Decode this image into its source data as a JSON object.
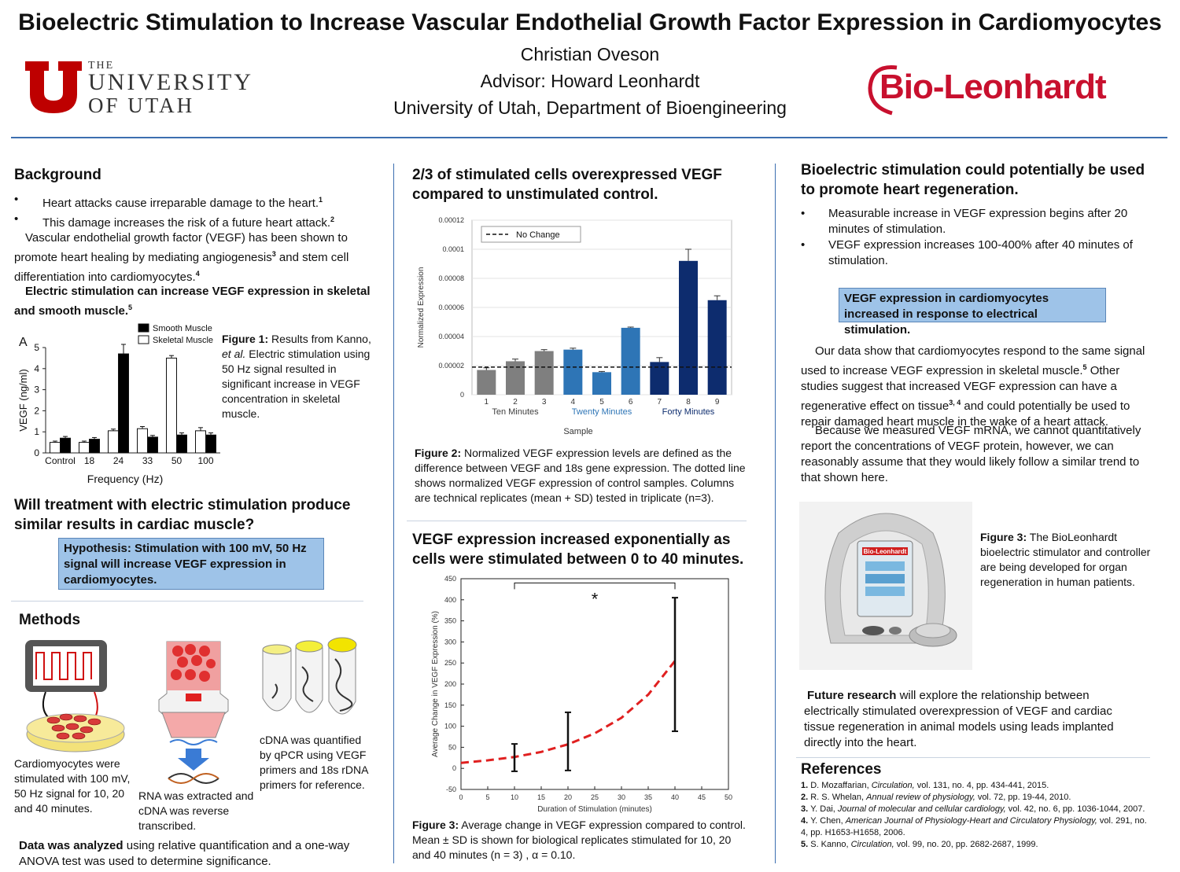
{
  "header": {
    "title": "Bioelectric Stimulation to Increase Vascular Endothelial Growth Factor Expression in Cardiomyocytes",
    "author": "Christian Oveson",
    "advisor": "Advisor: Howard Leonhardt",
    "affiliation": "University of Utah, Department of Bioengineering",
    "logo_left": {
      "the": "THE",
      "line1": "UNIVERSITY",
      "line2": "OF UTAH",
      "color": "#be0000"
    },
    "logo_right": {
      "text": "Bio-Leonhardt",
      "color": "#c8102e"
    }
  },
  "col1": {
    "background_h": "Background",
    "bullets": [
      "Heart attacks cause irreparable damage to the heart.",
      "This damage increases the risk of a future heart attack."
    ],
    "bullet_sups": [
      "1",
      "2"
    ],
    "para1a": "Vascular endothelial growth factor (VEGF) has been shown to promote heart healing by mediating angiogenesis",
    "para1b": "and stem cell differentiation into cardiomyocytes.",
    "sup3": "3",
    "sup4": "4",
    "para2": "Electric stimulation can increase VEGF expression in skeletal and smooth muscle.",
    "sup5": "5",
    "fig1_bold": "Figure 1:",
    "fig1_a": "Results from Kanno,",
    "fig1_i": "et al.",
    "fig1_b": "Electric stimulation using 50 Hz signal resulted in significant increase in VEGF concentration in skeletal muscle.",
    "question_h": "Will treatment with electric stimulation produce similar results in cardiac muscle?",
    "hypothesis": "Hypothesis: Stimulation with 100 mV, 50 Hz signal will increase VEGF expression in cardiomyocytes.",
    "methods_h": "Methods",
    "m1": "Cardiomyocytes were stimulated with 100 mV, 50 Hz signal for 10, 20 and 40 minutes.",
    "m2": "RNA was extracted and cDNA was reverse transcribed.",
    "m3": "cDNA was quantified by qPCR using VEGF primers and 18s rDNA primers for reference.",
    "analysis_bold": "Data was analyzed",
    "analysis_rest": "using relative quantification and a one-way ANOVA test was used to determine significance."
  },
  "col2": {
    "h1": "2/3 of stimulated cells overexpressed VEGF compared to unstimulated control.",
    "fig2_bold": "Figure 2:",
    "fig2_text": "Normalized VEGF expression levels are defined as the difference between VEGF and 18s gene expression. The dotted line shows normalized VEGF expression of control samples. Columns are technical replicates (mean + SD) tested in triplicate (n=3).",
    "h2": "VEGF expression increased exponentially as cells were stimulated between 0 to 40 minutes.",
    "fig3_bold": "Figure 3:",
    "fig3_text": "Average change in VEGF expression compared to control. Mean ± SD is shown for biological replicates stimulated for 10, 20 and 40 minutes (n = 3) , α = 0.10."
  },
  "col3": {
    "h1": "Bioelectric stimulation could potentially be used to promote heart regeneration.",
    "bullets": [
      "Measurable increase in VEGF expression begins after 20 minutes of stimulation.",
      "VEGF expression increases 100-400% after 40 minutes of stimulation."
    ],
    "box": "VEGF expression in cardiomyocytes increased in response to electrical stimulation.",
    "p1a": "Our data show that cardiomyocytes respond to the same signal used to increase VEGF expression in skeletal muscle.",
    "p1b": "Other studies suggest that increased VEGF expression can have a regenerative effect on tissue",
    "p1c": "and could potentially be used to repair damaged heart muscle in the wake of a heart attack.",
    "sup5": "5",
    "sup34": "3, 4",
    "p2": "Because we measured VEGF mRNA, we cannot quantitatively report the concentrations of VEGF protein, however, we can reasonably assume that they would likely follow a similar trend to that shown here.",
    "device_label": "Bio-Leonhardt",
    "fig3_bold": "Figure 3:",
    "fig3_text": "The BioLeonhardt bioelectric stimulator and controller are being developed for organ regeneration in human patients.",
    "future_bold": "Future research",
    "future_rest": "will explore the relationship between electrically stimulated overexpression of VEGF and cardiac tissue regeneration in animal models using leads implanted directly into the heart.",
    "refs_h": "References",
    "refs": [
      {
        "n": "1.",
        "a": "D. Mozaffarian,",
        "j": "Circulation,",
        "r": "vol. 131, no. 4, pp. 434-441, 2015."
      },
      {
        "n": "2.",
        "a": "R. S. Whelan,",
        "j": "Annual review of physiology,",
        "r": "vol. 72, pp. 19-44, 2010."
      },
      {
        "n": "3.",
        "a": "Y. Dai,",
        "j": "Journal of molecular and cellular cardiology,",
        "r": "vol. 42, no. 6, pp. 1036-1044, 2007."
      },
      {
        "n": "4.",
        "a": "Y. Chen,",
        "j": "American Journal of Physiology-Heart and Circulatory Physiology,",
        "r": "vol. 291, no. 4, pp. H1653-H1658, 2006."
      },
      {
        "n": "5.",
        "a": "S. Kanno,",
        "j": "Circulation,",
        "r": "vol. 99, no. 20, pp. 2682-2687, 1999."
      }
    ]
  },
  "chart_data": [
    {
      "type": "bar",
      "panel_label": "A",
      "categories": [
        "Control",
        "18",
        "24",
        "33",
        "50",
        "100"
      ],
      "series": [
        {
          "name": "Smooth Muscle",
          "color": "#000000",
          "values": [
            0.7,
            0.65,
            4.7,
            0.75,
            0.85,
            0.85
          ],
          "err": [
            0.08,
            0.08,
            0.45,
            0.08,
            0.1,
            0.1
          ]
        },
        {
          "name": "Skeletal Muscle",
          "color": "#ffffff",
          "values": [
            0.5,
            0.5,
            1.05,
            1.15,
            4.5,
            1.05
          ],
          "err": [
            0.06,
            0.06,
            0.08,
            0.1,
            0.12,
            0.15
          ]
        }
      ],
      "xlabel": "Frequency (Hz)",
      "ylabel": "VEGF (ng/ml)",
      "ylim": [
        0,
        5
      ],
      "yticks": [
        "0",
        "1",
        "2",
        "3",
        "4",
        "5"
      ]
    },
    {
      "type": "bar",
      "categories": [
        "1",
        "2",
        "3",
        "4",
        "5",
        "6",
        "7",
        "8",
        "9"
      ],
      "values": [
        1.7e-05,
        2.3e-05,
        3e-05,
        3.1e-05,
        1.55e-05,
        4.6e-05,
        2.25e-05,
        9.2e-05,
        6.5e-05
      ],
      "err": [
        1.5e-06,
        1.5e-06,
        1e-06,
        1e-06,
        5e-07,
        5e-07,
        3e-06,
        8e-06,
        3e-06
      ],
      "colors": [
        "#7f7f7f",
        "#7f7f7f",
        "#7f7f7f",
        "#2e75b6",
        "#2e75b6",
        "#2e75b6",
        "#0d2c6e",
        "#0d2c6e",
        "#0d2c6e"
      ],
      "groups": [
        {
          "label": "Ten Minutes",
          "color": "#404040"
        },
        {
          "label": "Twenty Minutes",
          "color": "#2e75b6"
        },
        {
          "label": "Forty Minutes",
          "color": "#0d2c6e"
        }
      ],
      "reference_line": {
        "value": 1.9e-05,
        "label": "No Change"
      },
      "xlabel": "Sample",
      "ylabel": "Normalized Expression",
      "ylim": [
        0,
        0.00012
      ],
      "yticks": [
        "0",
        "0.00002",
        "0.00004",
        "0.00006",
        "0.00008",
        "0.0001",
        "0.00012"
      ]
    },
    {
      "type": "line",
      "x": [
        0,
        5,
        10,
        15,
        20,
        25,
        30,
        35,
        40
      ],
      "series": [
        {
          "name": "",
          "color": "#e02020",
          "values": [
            13,
            19,
            27,
            39,
            57,
            83,
            120,
            175,
            255
          ]
        }
      ],
      "errorbars": [
        {
          "x": 10,
          "low": -7,
          "high": 58
        },
        {
          "x": 20,
          "low": -5,
          "high": 133
        },
        {
          "x": 40,
          "low": 88,
          "high": 405
        }
      ],
      "significance": {
        "from": 10,
        "to": 40,
        "label": "*"
      },
      "xlabel": "Duration of Stimulation (minutes)",
      "ylabel": "Average Change in VEGF Expression (%)",
      "xlim": [
        0,
        50
      ],
      "ylim": [
        -50,
        450
      ],
      "xticks": [
        "0",
        "5",
        "10",
        "15",
        "20",
        "25",
        "30",
        "35",
        "40",
        "45",
        "50"
      ],
      "yticks": [
        "-50",
        "0",
        "50",
        "100",
        "150",
        "200",
        "250",
        "300",
        "350",
        "400",
        "450"
      ]
    }
  ]
}
